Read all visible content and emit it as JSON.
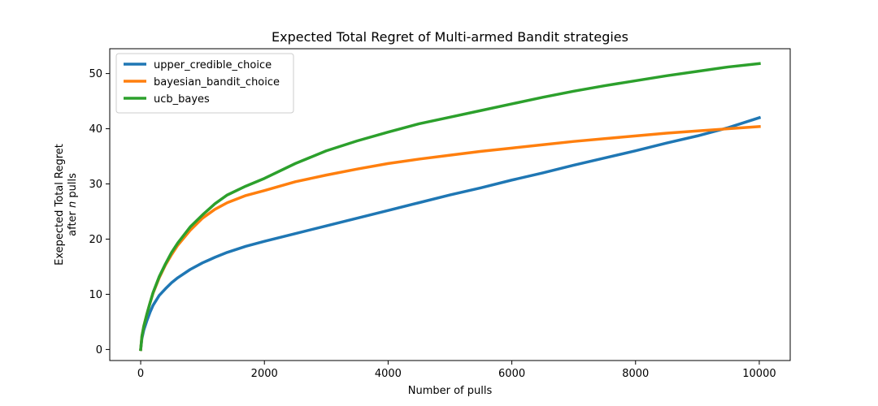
{
  "chart_data": {
    "type": "line",
    "title": "Expected Total Regret of Multi-armed Bandit strategies",
    "xlabel": "Number of pulls",
    "ylabel_line1": "Exepected Total Regret",
    "ylabel_line2_prefix": "after ",
    "ylabel_line2_var": "n",
    "ylabel_line2_suffix": " pulls",
    "xlim": [
      -500,
      10500
    ],
    "ylim": [
      -2,
      54.5
    ],
    "xticks": [
      0,
      2000,
      4000,
      6000,
      8000,
      10000
    ],
    "yticks": [
      0,
      10,
      20,
      30,
      40,
      50
    ],
    "grid": false,
    "legend_position": "upper-left",
    "x": [
      0,
      20,
      50,
      100,
      150,
      200,
      300,
      400,
      500,
      600,
      800,
      1000,
      1200,
      1400,
      1700,
      2000,
      2500,
      3000,
      3500,
      4000,
      4500,
      5000,
      5500,
      6000,
      6500,
      7000,
      7500,
      8000,
      8500,
      9000,
      9500,
      10000
    ],
    "series": [
      {
        "name": "upper_credible_choice",
        "color": "#1f77b4",
        "values": [
          0,
          2.0,
          3.5,
          5.2,
          6.7,
          8.0,
          9.8,
          11.0,
          12.1,
          13.0,
          14.5,
          15.7,
          16.7,
          17.6,
          18.7,
          19.6,
          21.0,
          22.4,
          23.8,
          25.2,
          26.6,
          28.0,
          29.3,
          30.7,
          32.0,
          33.4,
          34.7,
          36.0,
          37.4,
          38.7,
          40.2,
          42.0
        ]
      },
      {
        "name": "bayesian_bandit_choice",
        "color": "#ff7f0e",
        "values": [
          0,
          2.4,
          4.2,
          6.4,
          8.4,
          10.2,
          13.0,
          15.3,
          17.2,
          18.9,
          21.6,
          23.8,
          25.4,
          26.6,
          27.9,
          28.8,
          30.4,
          31.6,
          32.7,
          33.7,
          34.5,
          35.2,
          35.9,
          36.5,
          37.1,
          37.7,
          38.2,
          38.7,
          39.2,
          39.6,
          40.0,
          40.4
        ]
      },
      {
        "name": "ucb_bayes",
        "color": "#2ca02c",
        "values": [
          0,
          2.4,
          4.2,
          6.4,
          8.4,
          10.3,
          13.2,
          15.5,
          17.6,
          19.3,
          22.2,
          24.4,
          26.4,
          28.0,
          29.6,
          31.0,
          33.7,
          36.0,
          37.8,
          39.4,
          40.9,
          42.1,
          43.3,
          44.5,
          45.7,
          46.8,
          47.8,
          48.7,
          49.6,
          50.4,
          51.2,
          51.8
        ]
      }
    ]
  }
}
